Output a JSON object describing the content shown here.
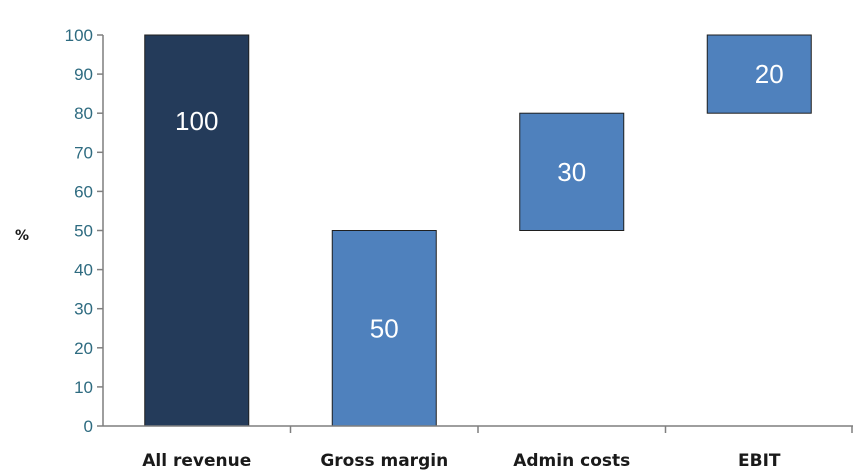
{
  "chart_data": {
    "type": "bar",
    "subtype": "waterfall",
    "title": "",
    "xlabel": "",
    "ylabel": "%",
    "ylim": [
      0,
      100
    ],
    "yticks": [
      0,
      10,
      20,
      30,
      40,
      50,
      60,
      70,
      80,
      90,
      100
    ],
    "grid": false,
    "legend": "none",
    "categories": [
      "All revenue",
      "Gross margin",
      "Admin costs",
      "EBIT"
    ],
    "bars": [
      {
        "category": "All revenue",
        "base": 0,
        "value": 100,
        "label": "100",
        "color": "#243b5a"
      },
      {
        "category": "Gross margin",
        "base": 0,
        "value": 50,
        "label": "50",
        "color": "#4f81bd"
      },
      {
        "category": "Admin costs",
        "base": 50,
        "value": 30,
        "label": "30",
        "color": "#4f81bd"
      },
      {
        "category": "EBIT",
        "base": 80,
        "value": 20,
        "label": "20",
        "color": "#4f81bd"
      }
    ],
    "colors": {
      "axis": "#7f7f7f",
      "tick_text": "#2e6b80",
      "bar_border": "#1f1f1f"
    }
  }
}
